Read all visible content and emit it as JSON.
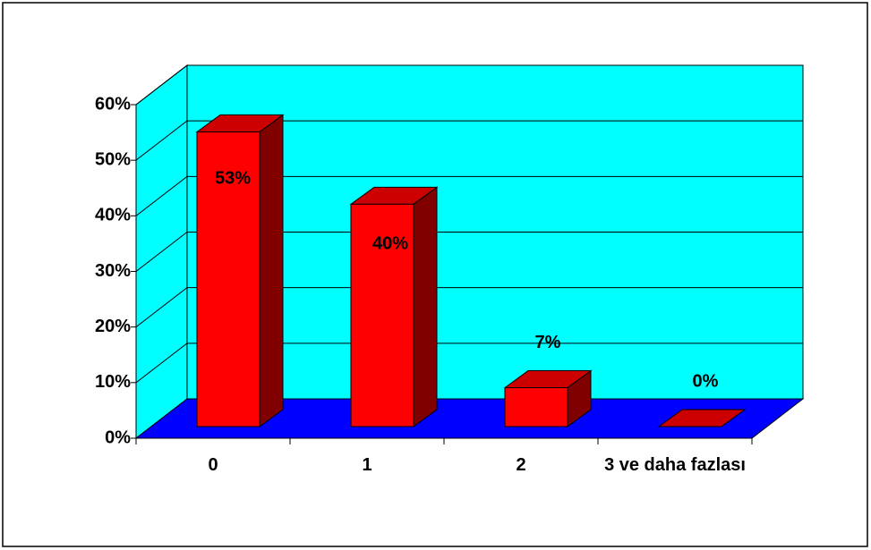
{
  "chart_data": {
    "type": "bar3d",
    "categories": [
      "0",
      "1",
      "2",
      "3 ve daha fazlası"
    ],
    "values": [
      53,
      40,
      7,
      0
    ],
    "value_labels": [
      "53%",
      "40%",
      "7%",
      "0%"
    ],
    "color": "#ff0000",
    "ylim": [
      0,
      60
    ],
    "yticks": [
      {
        "value": 0,
        "label": "0%"
      },
      {
        "value": 10,
        "label": "10%"
      },
      {
        "value": 20,
        "label": "20%"
      },
      {
        "value": 30,
        "label": "30%"
      },
      {
        "value": 40,
        "label": "40%"
      },
      {
        "value": 50,
        "label": "50%"
      },
      {
        "value": 60,
        "label": "60%"
      }
    ],
    "grid": true
  }
}
